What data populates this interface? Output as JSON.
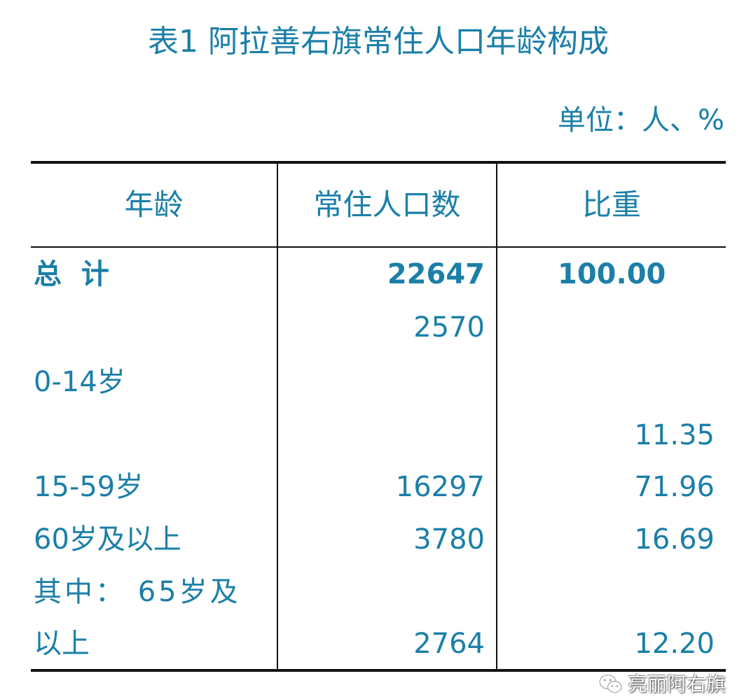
{
  "title": "表1 阿拉善右旗常住人口年龄构成",
  "unit": "单位：人、%",
  "table": {
    "headers": [
      "年龄",
      "常住人口数",
      "比重"
    ],
    "total": {
      "label": "总  计",
      "population": "22647",
      "share": "100.00"
    },
    "rows": [
      {
        "label": "0-14岁",
        "population": "2570",
        "share": "11.35"
      },
      {
        "label": "15-59岁",
        "population": "16297",
        "share": "71.96"
      },
      {
        "label": "60岁及以上",
        "population": "3780",
        "share": "16.69"
      },
      {
        "label_line1": "其中： 65岁及",
        "label_line2": "以上",
        "population": "2764",
        "share": "12.20"
      }
    ]
  },
  "watermark": "亮丽阿右旗",
  "colors": {
    "text": "#1b7fa8",
    "rule": "#111111"
  }
}
